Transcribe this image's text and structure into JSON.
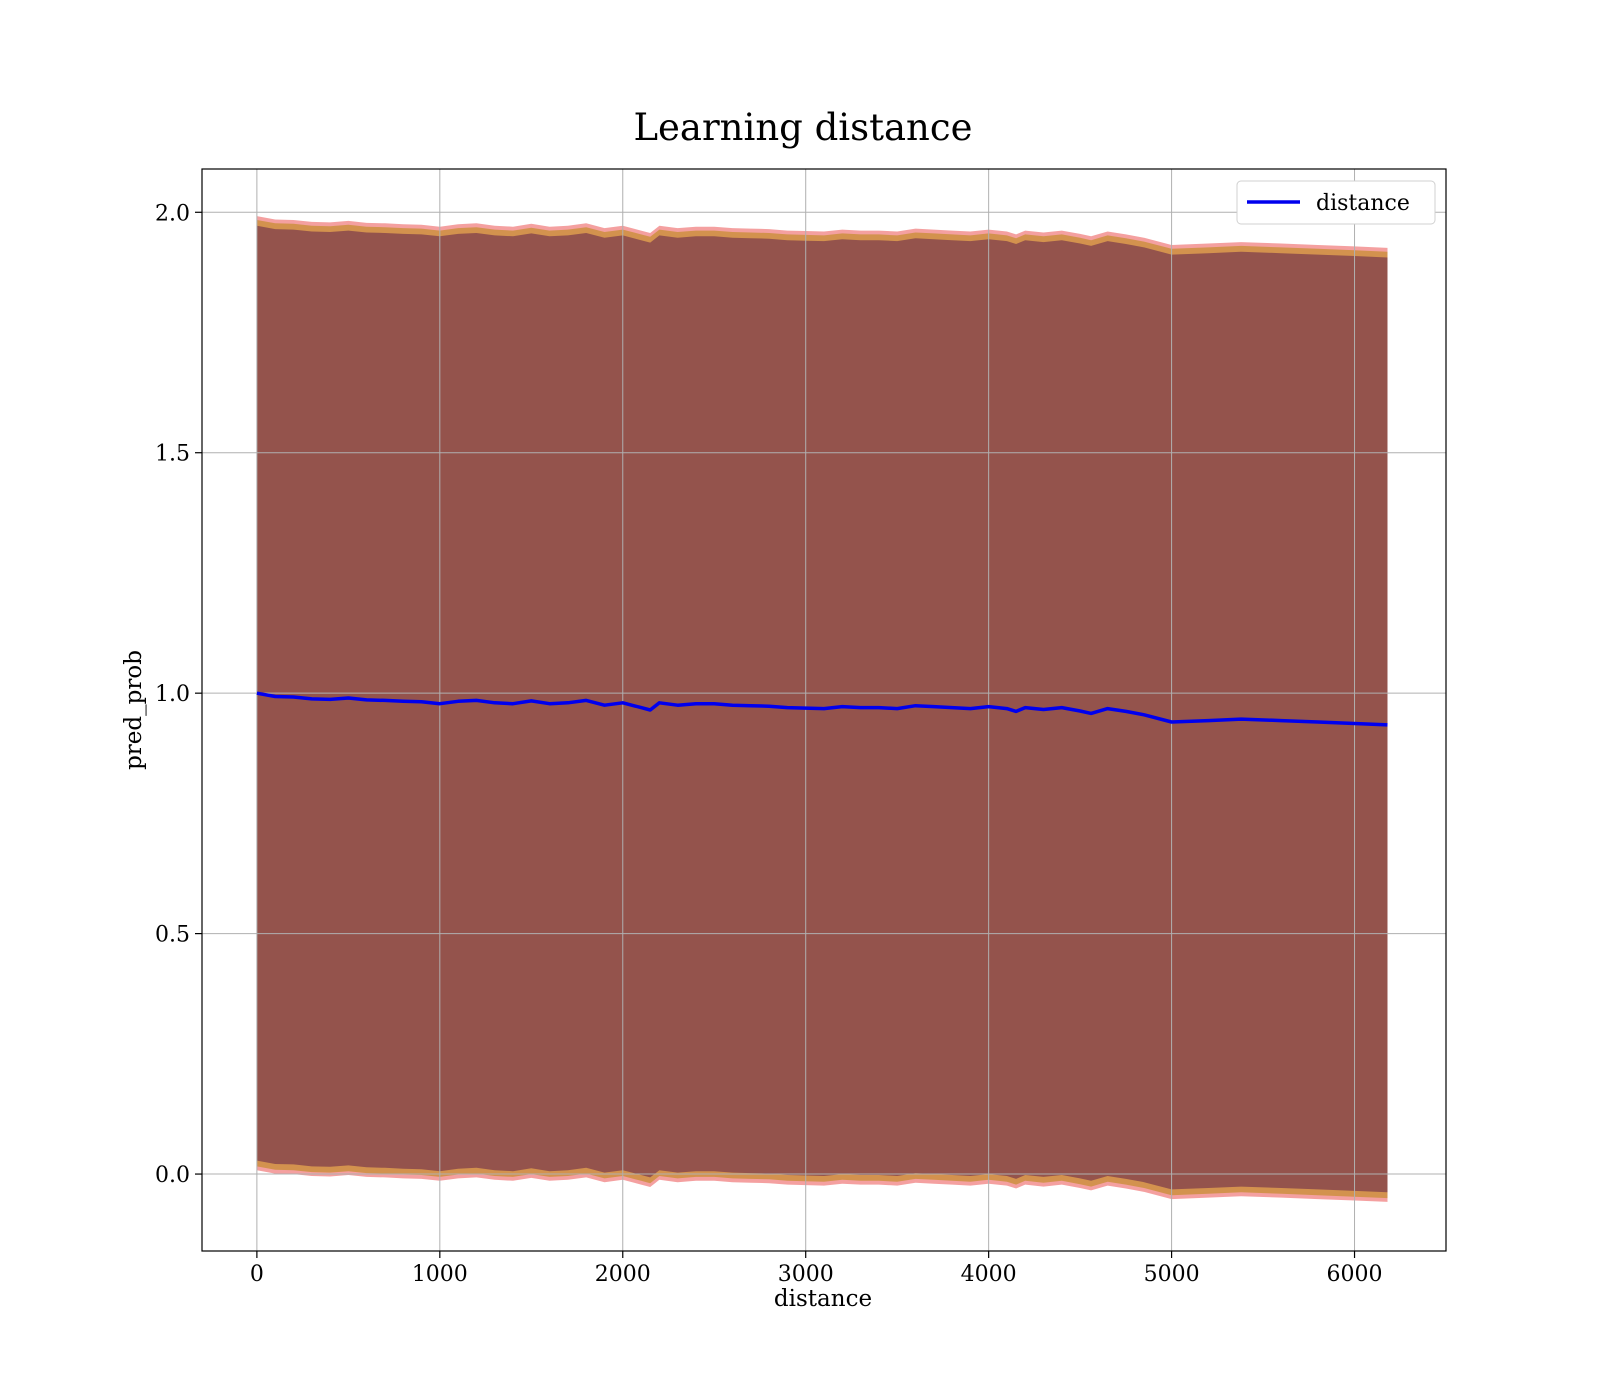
{
  "chart_data": {
    "type": "line",
    "title": "Learning distance",
    "xlabel": "distance",
    "ylabel": "pred_prob",
    "xlim": [
      -300,
      6500
    ],
    "ylim": [
      -0.16,
      2.09
    ],
    "xticks": [
      "0",
      "1000",
      "2000",
      "3000",
      "4000",
      "5000",
      "6000"
    ],
    "yticks": [
      "0.0",
      "0.5",
      "1.0",
      "1.5",
      "2.0"
    ],
    "grid": true,
    "legend_position": "top-right",
    "colors": {
      "line": "#0000ee",
      "band_inner": "#7b3a4c",
      "band_outer": "#f08080",
      "band_accent": "#b8860b",
      "grid": "#b0b0b0"
    },
    "series": [
      {
        "name": "distance",
        "x": [
          0,
          100,
          200,
          300,
          400,
          500,
          600,
          700,
          800,
          900,
          1000,
          1100,
          1200,
          1300,
          1400,
          1500,
          1600,
          1700,
          1800,
          1900,
          2000,
          2100,
          2150,
          2200,
          2300,
          2400,
          2500,
          2600,
          2700,
          2800,
          2900,
          3000,
          3100,
          3200,
          3300,
          3400,
          3500,
          3600,
          3700,
          3800,
          3900,
          4000,
          4100,
          4150,
          4200,
          4300,
          4400,
          4500,
          4560,
          4650,
          4750,
          4850,
          5000,
          5200,
          5380,
          5600,
          5800,
          6000,
          6180
        ],
        "y": [
          1.0,
          0.993,
          0.992,
          0.988,
          0.987,
          0.99,
          0.986,
          0.985,
          0.983,
          0.982,
          0.978,
          0.983,
          0.985,
          0.98,
          0.978,
          0.984,
          0.978,
          0.98,
          0.985,
          0.975,
          0.98,
          0.97,
          0.965,
          0.98,
          0.975,
          0.978,
          0.978,
          0.975,
          0.974,
          0.973,
          0.97,
          0.969,
          0.968,
          0.972,
          0.97,
          0.97,
          0.968,
          0.974,
          0.972,
          0.97,
          0.968,
          0.972,
          0.968,
          0.962,
          0.97,
          0.966,
          0.97,
          0.963,
          0.958,
          0.968,
          0.962,
          0.955,
          0.94,
          0.943,
          0.946,
          0.943,
          0.94,
          0.937,
          0.934
        ]
      }
    ]
  }
}
